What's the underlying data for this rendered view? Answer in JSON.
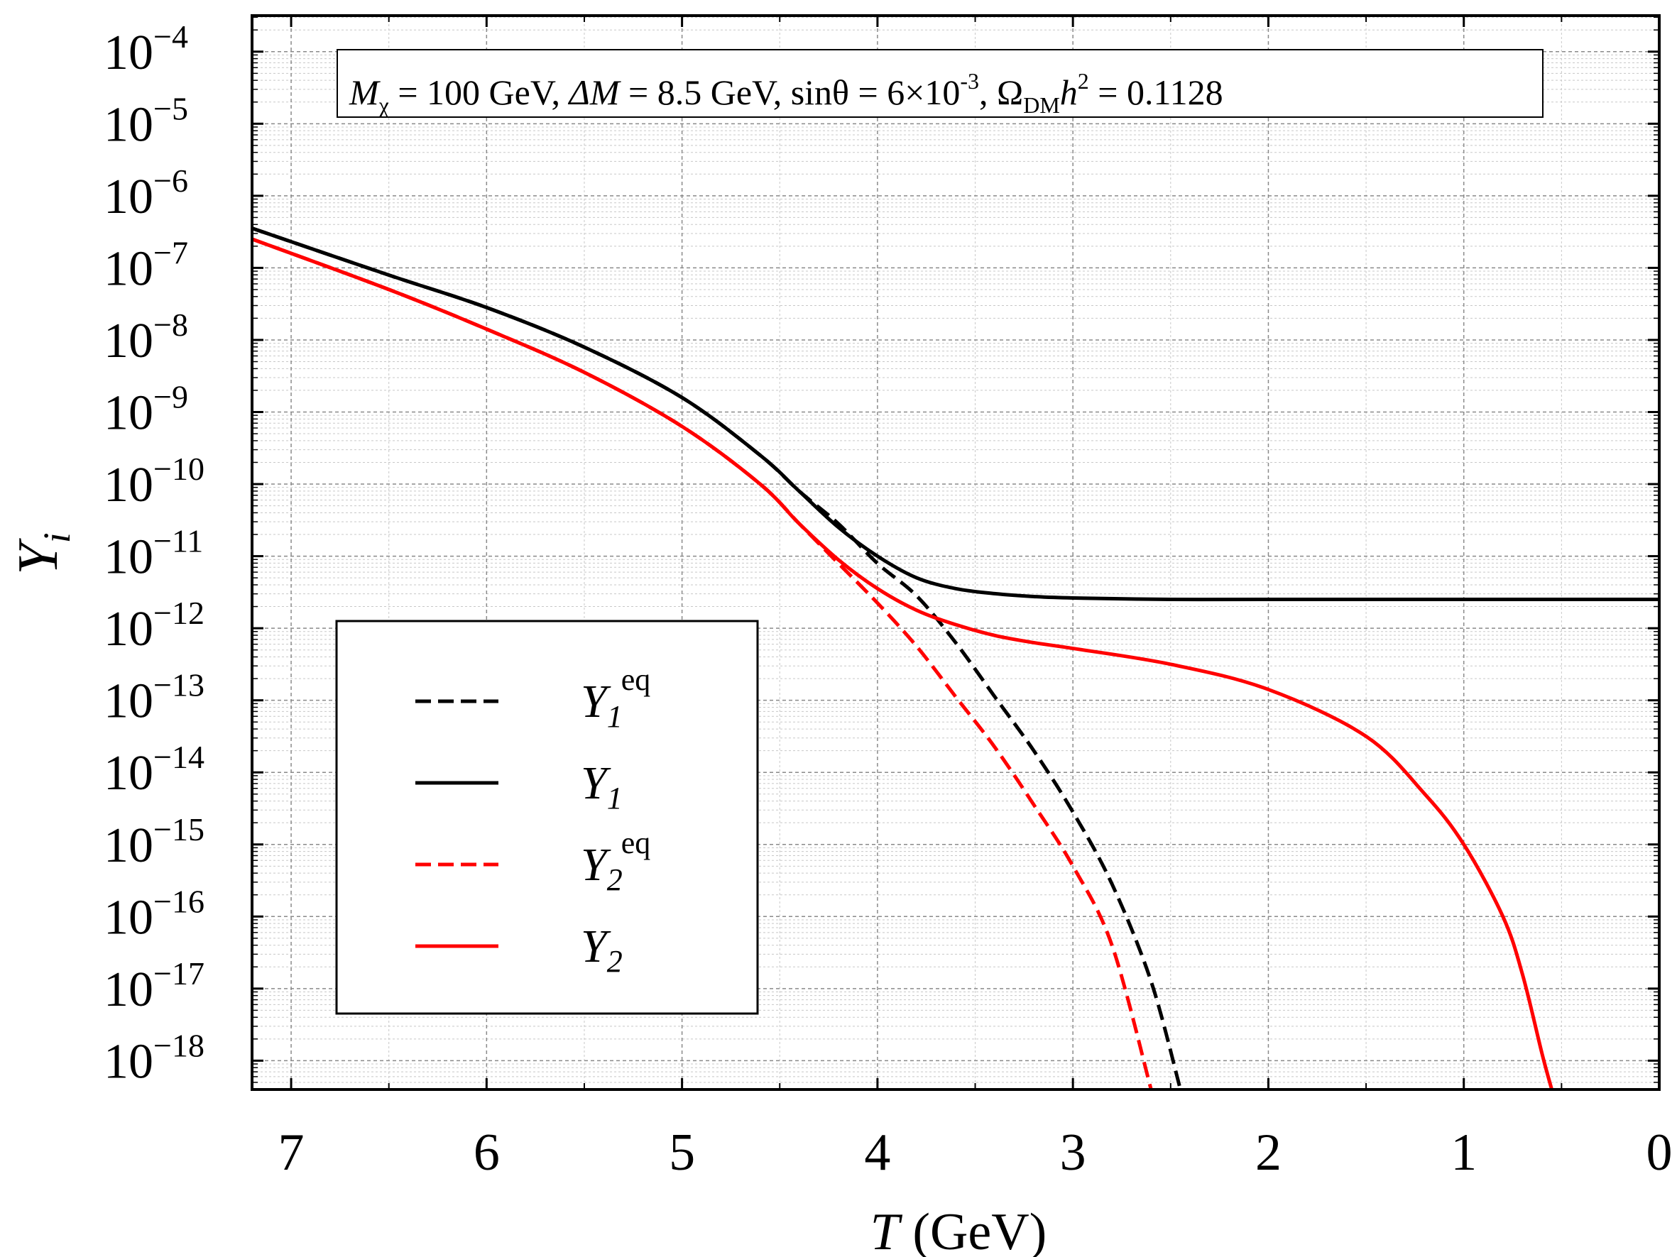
{
  "chart_data": {
    "type": "line",
    "xlabel": {
      "var": "T",
      "unit": " (GeV)"
    },
    "ylabel": {
      "base": "Y",
      "sub": "i"
    },
    "xlim": [
      7.2,
      0
    ],
    "ylim_log10": [
      -18.4,
      -3.5
    ],
    "x_scale": "linear (reversed)",
    "y_scale": "log",
    "grid": true,
    "legend_position": "lower-left",
    "x_ticks": [
      7,
      6,
      5,
      4,
      3,
      2,
      1,
      0
    ],
    "x_tick_labels": [
      "7",
      "6",
      "5",
      "4",
      "3",
      "2",
      "1",
      "0"
    ],
    "y_ticks_log10": [
      -4,
      -5,
      -6,
      -7,
      -8,
      -9,
      -10,
      -11,
      -12,
      -13,
      -14,
      -15,
      -16,
      -17,
      -18
    ],
    "y_tick_exponents": [
      "−4",
      "−5",
      "−6",
      "−7",
      "−8",
      "−9",
      "−10",
      "−11",
      "−12",
      "−13",
      "−14",
      "−15",
      "−16",
      "−17",
      "−18"
    ],
    "y_tick_base": "10",
    "annotation": {
      "m_sym": "M",
      "m_sub": "χ",
      "m_val": " = 100 GeV, ",
      "dm_sym": "ΔM",
      "dm_val": " = 8.5 GeV, sinθ = 6×10",
      "sin_exp": "-3",
      "comma": ", ",
      "omega": "Ω",
      "omega_sub": "DM",
      "h": "h",
      "h_exp": "2",
      "omega_val": " = 0.1128"
    },
    "series": [
      {
        "base": "Y",
        "sub": "1",
        "sup": "eq",
        "color": "#000000",
        "dash": "dashed",
        "x": [
          7.2,
          6.5,
          6.0,
          5.5,
          5.0,
          4.6,
          4.4,
          4.2,
          4.0,
          3.8,
          3.6,
          3.4,
          3.2,
          3.0,
          2.8,
          2.6,
          2.45
        ],
        "log10y": [
          -6.45,
          -7.1,
          -7.55,
          -8.1,
          -8.8,
          -9.6,
          -10.1,
          -10.55,
          -11.1,
          -11.55,
          -12.2,
          -12.95,
          -13.7,
          -14.55,
          -15.55,
          -16.9,
          -18.4
        ]
      },
      {
        "base": "Y",
        "sub": "1",
        "sup": "",
        "color": "#000000",
        "dash": "solid",
        "x": [
          7.2,
          6.5,
          6.0,
          5.5,
          5.0,
          4.6,
          4.4,
          4.2,
          4.0,
          3.8,
          3.6,
          3.4,
          3.2,
          3.0,
          2.5,
          2.0,
          1.0,
          0.0
        ],
        "log10y": [
          -6.45,
          -7.1,
          -7.55,
          -8.1,
          -8.8,
          -9.6,
          -10.1,
          -10.6,
          -11.0,
          -11.3,
          -11.45,
          -11.52,
          -11.56,
          -11.58,
          -11.6,
          -11.6,
          -11.6,
          -11.6
        ]
      },
      {
        "base": "Y",
        "sub": "2",
        "sup": "eq",
        "color": "#ff0000",
        "dash": "dashed",
        "x": [
          7.2,
          6.5,
          6.0,
          5.5,
          5.0,
          4.6,
          4.4,
          4.2,
          4.0,
          3.8,
          3.6,
          3.4,
          3.2,
          3.0,
          2.8,
          2.6
        ],
        "log10y": [
          -6.6,
          -7.3,
          -7.85,
          -8.45,
          -9.2,
          -10.0,
          -10.55,
          -11.1,
          -11.65,
          -12.25,
          -12.95,
          -13.65,
          -14.45,
          -15.3,
          -16.4,
          -18.4
        ]
      },
      {
        "base": "Y",
        "sub": "2",
        "sup": "",
        "color": "#ff0000",
        "dash": "solid",
        "x": [
          7.2,
          6.5,
          6.0,
          5.5,
          5.0,
          4.6,
          4.4,
          4.2,
          4.0,
          3.8,
          3.6,
          3.4,
          3.2,
          3.0,
          2.5,
          2.0,
          1.5,
          1.2,
          1.0,
          0.8,
          0.7,
          0.6,
          0.55
        ],
        "log10y": [
          -6.6,
          -7.3,
          -7.85,
          -8.45,
          -9.2,
          -10.0,
          -10.55,
          -11.05,
          -11.45,
          -11.75,
          -11.95,
          -12.1,
          -12.2,
          -12.28,
          -12.5,
          -12.85,
          -13.5,
          -14.3,
          -15.0,
          -16.0,
          -16.8,
          -17.9,
          -18.4
        ]
      }
    ]
  }
}
